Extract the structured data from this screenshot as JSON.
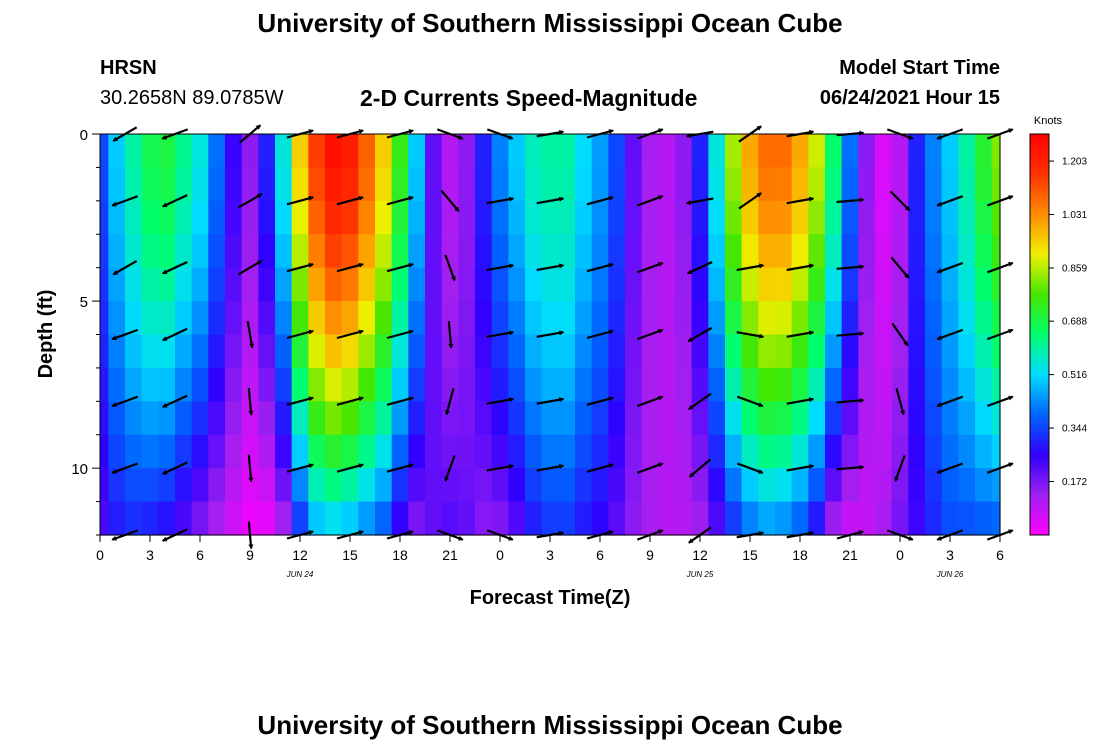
{
  "header": {
    "title": "University of Southern Mississippi Ocean Cube",
    "station": "HRSN",
    "coords": "30.2658N  89.0785W",
    "subtitle": "2-D Currents Speed-Magnitude",
    "model_start_label": "Model Start Time",
    "model_start_value": "06/24/2021 Hour 15"
  },
  "footer": {
    "title": "University of Southern Mississippi Ocean Cube"
  },
  "colors": {
    "palette": [
      "#ff00ff",
      "#a020f0",
      "#3000ff",
      "#0064ff",
      "#00dcff",
      "#00ff6e",
      "#46e600",
      "#f0f000",
      "#ff8c00",
      "#ff3200",
      "#ff0000"
    ]
  },
  "chart_data": {
    "type": "heatmap",
    "title": "2-D Currents Speed-Magnitude",
    "xlabel": "Forecast Time(Z)",
    "ylabel": "Depth (ft)",
    "x_range": [
      0,
      54
    ],
    "x_units": "hours since Jun 24 00Z",
    "ylim": [
      0,
      12
    ],
    "y_inverted": true,
    "x_tick_labels": [
      "0",
      "3",
      "6",
      "9",
      "12",
      "15",
      "18",
      "21",
      "0",
      "3",
      "6",
      "9",
      "12",
      "15",
      "18",
      "21",
      "0",
      "3",
      "6"
    ],
    "y_tick_labels": [
      "0",
      "5",
      "10"
    ],
    "y_tick_values": [
      0,
      5,
      10
    ],
    "date_labels": [
      {
        "hour": 12,
        "text": "JUN 24"
      },
      {
        "hour": 36,
        "text": "JUN 25"
      },
      {
        "hour": 51,
        "text": "JUN 26"
      }
    ],
    "colorbar": {
      "label": "Knots",
      "vmin": 0.0,
      "vmax": 1.29,
      "tick_labels": [
        "1.203",
        "1.031",
        "0.859",
        "0.688",
        "0.516",
        "0.344",
        "0.172"
      ],
      "tick_values": [
        1.203,
        1.031,
        0.859,
        0.688,
        0.516,
        0.344,
        0.172
      ]
    },
    "hours": [
      0,
      1,
      2,
      3,
      4,
      5,
      6,
      7,
      8,
      9,
      10,
      11,
      12,
      13,
      14,
      15,
      16,
      17,
      18,
      19,
      20,
      21,
      22,
      23,
      24,
      25,
      26,
      27,
      28,
      29,
      30,
      31,
      32,
      33,
      34,
      35,
      36,
      37,
      38,
      39,
      40,
      41,
      42,
      43,
      44,
      45,
      46,
      47,
      48,
      49,
      50,
      51,
      52,
      53,
      54
    ],
    "surface_speed_knots": [
      0.35,
      0.5,
      0.6,
      0.68,
      0.7,
      0.62,
      0.55,
      0.4,
      0.25,
      0.15,
      0.3,
      0.55,
      0.95,
      1.15,
      1.25,
      1.22,
      1.1,
      0.95,
      0.75,
      0.5,
      0.2,
      0.1,
      0.15,
      0.3,
      0.42,
      0.5,
      0.58,
      0.6,
      0.6,
      0.52,
      0.45,
      0.35,
      0.2,
      0.12,
      0.1,
      0.15,
      0.3,
      0.55,
      0.85,
      1.0,
      1.08,
      1.08,
      1.0,
      0.88,
      0.65,
      0.4,
      0.15,
      0.05,
      0.1,
      0.3,
      0.42,
      0.5,
      0.6,
      0.72,
      0.82
    ],
    "bottom_speed_knots": [
      0.22,
      0.28,
      0.3,
      0.28,
      0.25,
      0.2,
      0.15,
      0.1,
      0.06,
      0.02,
      0.02,
      0.1,
      0.3,
      0.45,
      0.48,
      0.45,
      0.4,
      0.35,
      0.22,
      0.15,
      0.2,
      0.22,
      0.2,
      0.15,
      0.15,
      0.2,
      0.28,
      0.32,
      0.32,
      0.28,
      0.25,
      0.2,
      0.15,
      0.12,
      0.1,
      0.1,
      0.12,
      0.2,
      0.3,
      0.38,
      0.42,
      0.4,
      0.35,
      0.25,
      0.1,
      0.06,
      0.08,
      0.12,
      0.18,
      0.24,
      0.3,
      0.35,
      0.35,
      0.36,
      0.36
    ],
    "vector_hours": [
      1.5,
      4.5,
      9,
      12,
      15,
      18,
      21,
      24,
      27,
      30,
      33,
      36,
      39,
      42,
      45,
      48,
      51,
      54
    ],
    "vector_depths_ft": [
      0,
      2,
      4,
      6,
      8,
      10,
      12
    ],
    "vector_directions_deg": [
      [
        240,
        250,
        240,
        250,
        250,
        250,
        250
      ],
      [
        250,
        245,
        245,
        245,
        245,
        245,
        245
      ],
      [
        50,
        60,
        60,
        170,
        175,
        175,
        175
      ],
      [
        75,
        75,
        75,
        75,
        75,
        75,
        75
      ],
      [
        75,
        75,
        75,
        75,
        75,
        75,
        75
      ],
      [
        75,
        75,
        75,
        75,
        75,
        75,
        75
      ],
      [
        110,
        140,
        160,
        175,
        195,
        200,
        110
      ],
      [
        110,
        80,
        80,
        80,
        80,
        80,
        110
      ],
      [
        80,
        80,
        80,
        80,
        80,
        80,
        80
      ],
      [
        75,
        75,
        75,
        75,
        75,
        75,
        75
      ],
      [
        70,
        70,
        70,
        70,
        70,
        70,
        70
      ],
      [
        260,
        260,
        245,
        240,
        235,
        230,
        235
      ],
      [
        55,
        55,
        80,
        100,
        110,
        110,
        80
      ],
      [
        80,
        80,
        80,
        80,
        80,
        80,
        80
      ],
      [
        85,
        85,
        85,
        85,
        85,
        85,
        75
      ],
      [
        110,
        135,
        140,
        145,
        165,
        200,
        110
      ],
      [
        250,
        250,
        250,
        250,
        250,
        250,
        250
      ],
      [
        70,
        70,
        70,
        70,
        70,
        70,
        70
      ]
    ]
  }
}
